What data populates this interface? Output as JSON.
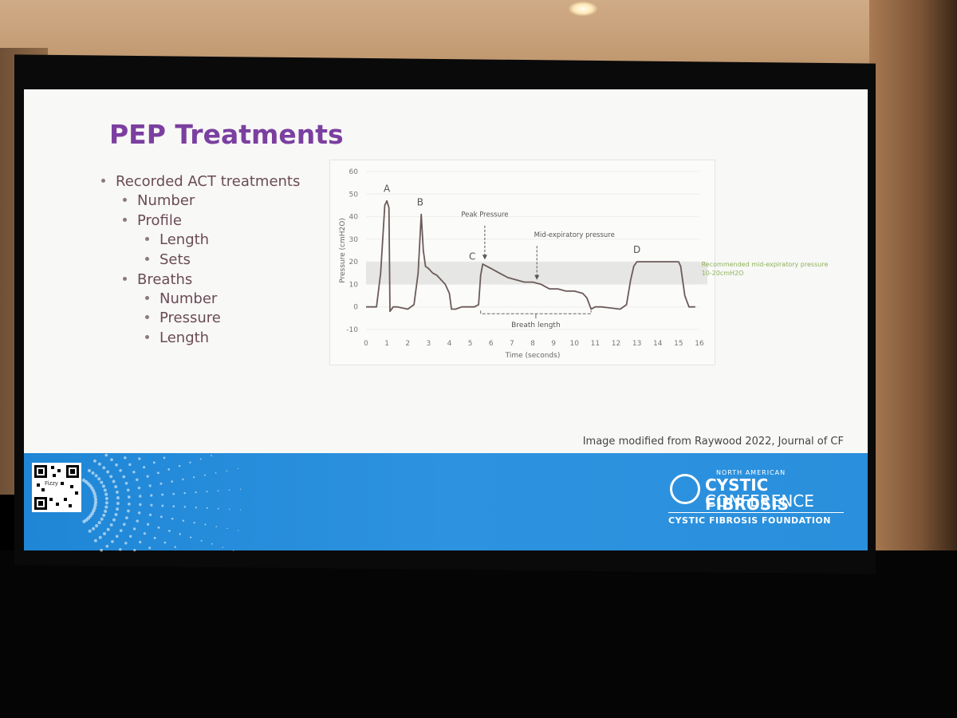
{
  "slide": {
    "title": "PEP Treatments",
    "bullets": [
      {
        "text": "Recorded ACT treatments",
        "level": 0
      },
      {
        "text": "Number",
        "level": 1
      },
      {
        "text": "Profile",
        "level": 1
      },
      {
        "text": "Length",
        "level": 2
      },
      {
        "text": "Sets",
        "level": 2
      },
      {
        "text": "Breaths",
        "level": 1
      },
      {
        "text": "Number",
        "level": 2
      },
      {
        "text": "Pressure",
        "level": 2
      },
      {
        "text": "Length",
        "level": 2
      }
    ],
    "caption": "Image modified from Raywood 2022, Journal of CF"
  },
  "chart_data": {
    "type": "line",
    "xlabel": "Time (seconds)",
    "ylabel": "Pressure (cmH2O)",
    "xlim": [
      0,
      16
    ],
    "ylim": [
      -10,
      60
    ],
    "x_ticks": [
      "0",
      "1",
      "2",
      "3",
      "4",
      "5",
      "6",
      "7",
      "8",
      "9",
      "10",
      "11",
      "12",
      "13",
      "14",
      "15",
      "16"
    ],
    "y_ticks": [
      "-10",
      "0",
      "10",
      "20",
      "30",
      "40",
      "50",
      "60"
    ],
    "band": {
      "from": 10,
      "to": 20,
      "label_line1": "Recommended mid-expiratory pressure",
      "label_line2": "10-20cmH2O"
    },
    "series": [
      {
        "name": "pressure",
        "points": [
          [
            0,
            0
          ],
          [
            0.5,
            0
          ],
          [
            0.7,
            15
          ],
          [
            0.9,
            45
          ],
          [
            1.0,
            47
          ],
          [
            1.1,
            44
          ],
          [
            1.15,
            -2
          ],
          [
            1.3,
            0
          ],
          [
            1.5,
            0
          ],
          [
            2.0,
            -1
          ],
          [
            2.3,
            1
          ],
          [
            2.5,
            15
          ],
          [
            2.65,
            41
          ],
          [
            2.75,
            25
          ],
          [
            2.85,
            18
          ],
          [
            3.0,
            17
          ],
          [
            3.2,
            15
          ],
          [
            3.4,
            14
          ],
          [
            3.6,
            12
          ],
          [
            3.8,
            10
          ],
          [
            4.0,
            6
          ],
          [
            4.1,
            -1
          ],
          [
            4.3,
            -1
          ],
          [
            4.6,
            0
          ],
          [
            5.2,
            0
          ],
          [
            5.4,
            1
          ],
          [
            5.5,
            14
          ],
          [
            5.6,
            19
          ],
          [
            5.8,
            18
          ],
          [
            6.0,
            17
          ],
          [
            6.4,
            15
          ],
          [
            6.8,
            13
          ],
          [
            7.2,
            12
          ],
          [
            7.6,
            11
          ],
          [
            8.0,
            11
          ],
          [
            8.4,
            10
          ],
          [
            8.8,
            8
          ],
          [
            9.2,
            8
          ],
          [
            9.6,
            7
          ],
          [
            10.0,
            7
          ],
          [
            10.4,
            6
          ],
          [
            10.6,
            4
          ],
          [
            10.8,
            -1
          ],
          [
            11.0,
            0
          ],
          [
            11.3,
            0
          ],
          [
            12.2,
            -1
          ],
          [
            12.5,
            1
          ],
          [
            12.7,
            12
          ],
          [
            12.85,
            18
          ],
          [
            13.0,
            20
          ],
          [
            13.5,
            20
          ],
          [
            14.0,
            20
          ],
          [
            14.5,
            20
          ],
          [
            15.0,
            20
          ],
          [
            15.1,
            18
          ],
          [
            15.3,
            5
          ],
          [
            15.5,
            0
          ],
          [
            15.8,
            0
          ]
        ]
      }
    ],
    "labels": [
      {
        "text": "A",
        "x": 1.0,
        "y": 51
      },
      {
        "text": "B",
        "x": 2.6,
        "y": 45
      },
      {
        "text": "C",
        "x": 5.1,
        "y": 21
      },
      {
        "text": "D",
        "x": 13.0,
        "y": 24
      },
      {
        "text": "Peak Pressure",
        "x": 5.7,
        "y": 40
      },
      {
        "text": "Mid-expiratory pressure",
        "x": 10.0,
        "y": 31
      }
    ],
    "arrows": [
      {
        "name": "peak-pressure-arrow",
        "x": 5.7,
        "y_from": 36,
        "y_to": 21
      },
      {
        "name": "mid-expiratory-arrow",
        "x": 8.2,
        "y_from": 27,
        "y_to": 12
      }
    ],
    "breath_length": {
      "text": "Breath length",
      "x_from": 5.5,
      "x_to": 10.8,
      "y": -3
    }
  },
  "footer": {
    "qr_label": "Fizzy",
    "logo_small": "NORTH AMERICAN",
    "logo_line1": "CYSTIC FIBROSIS",
    "logo_line2": "CONFERENCE",
    "logo_foundation": "CYSTIC FIBROSIS FOUNDATION",
    "band_color": "#2a8fdc"
  },
  "colors": {
    "title": "#7b3fa0",
    "bullet_text": "#6a4b57",
    "band_text": "#8fb15a"
  }
}
